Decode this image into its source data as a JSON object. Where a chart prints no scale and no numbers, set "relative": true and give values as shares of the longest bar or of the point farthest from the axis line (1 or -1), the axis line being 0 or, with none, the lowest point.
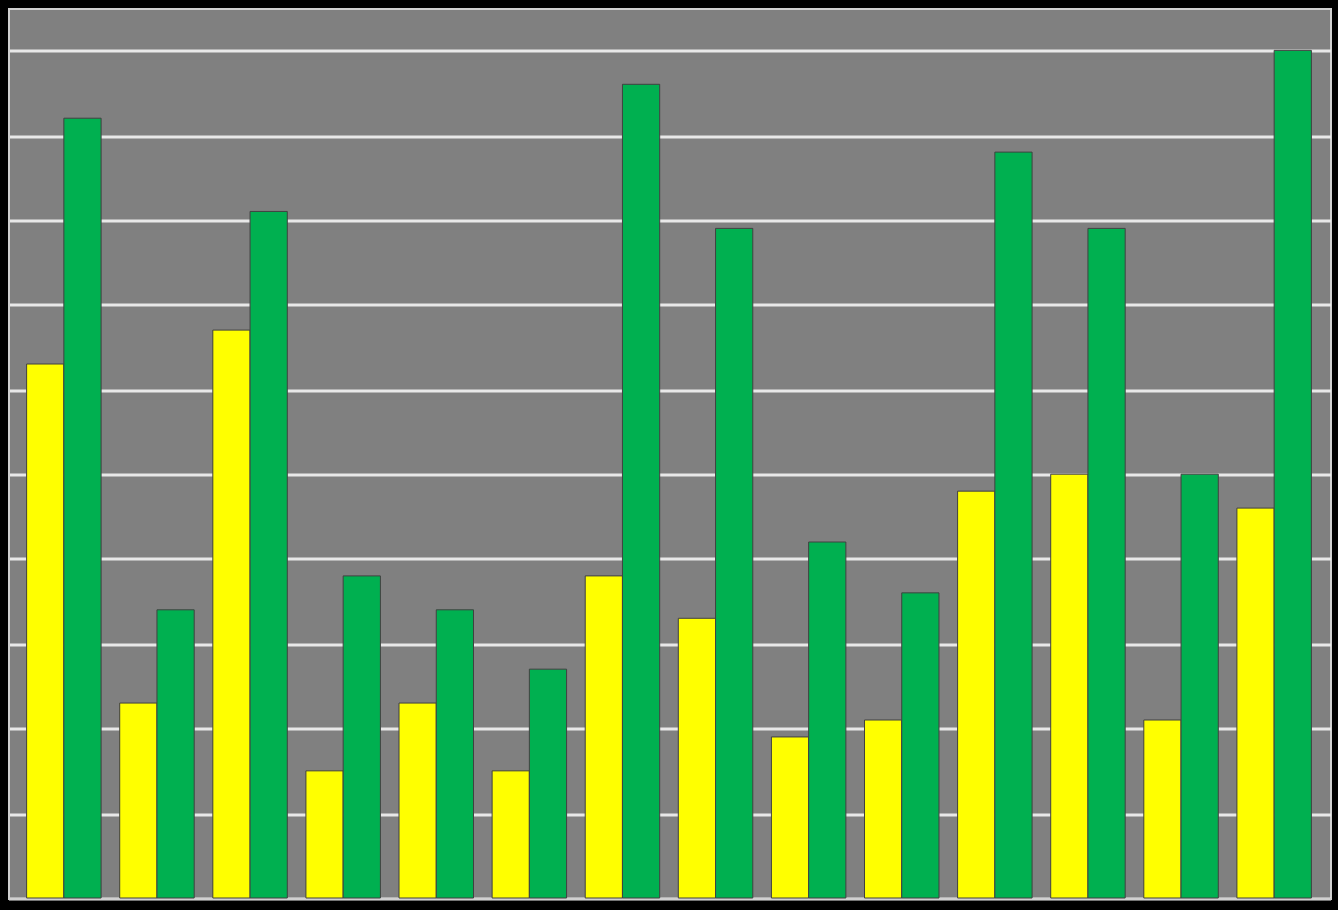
{
  "chart_data": {
    "type": "bar",
    "relative": true,
    "grid": "y",
    "legend": false,
    "categories": [
      null,
      null,
      null,
      null,
      null,
      null,
      null,
      null,
      null,
      null,
      null,
      null,
      null,
      null
    ],
    "series": [
      {
        "color": "#ffff00",
        "values": [
          0.63,
          0.23,
          0.67,
          0.15,
          0.23,
          0.15,
          0.38,
          0.33,
          0.19,
          0.21,
          0.48,
          0.5,
          0.21,
          0.46
        ]
      },
      {
        "color": "#00b050",
        "values": [
          0.92,
          0.34,
          0.81,
          0.38,
          0.34,
          0.27,
          0.96,
          0.79,
          0.42,
          0.36,
          0.88,
          0.79,
          0.5,
          1
        ]
      }
    ]
  }
}
